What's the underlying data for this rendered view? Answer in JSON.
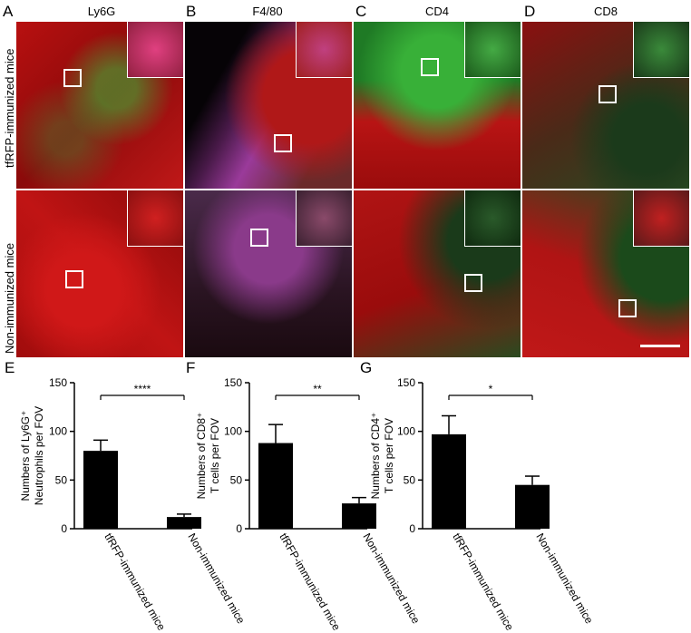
{
  "panels_top": [
    {
      "letter": "A",
      "title": "Ly6G"
    },
    {
      "letter": "B",
      "title": "F4/80"
    },
    {
      "letter": "C",
      "title": "CD4"
    },
    {
      "letter": "D",
      "title": "CD8"
    }
  ],
  "row_labels": [
    "tfRFP-immunized mice",
    "Non-immunized mice"
  ],
  "colors": {
    "red": "#c01010",
    "green": "#2aa832",
    "magenta": "#c040c0",
    "dark": "#1a0a10"
  },
  "chart_data": [
    {
      "letter": "E",
      "type": "bar",
      "categories": [
        "tfRFP-immunized mice",
        "Non-immunized mice"
      ],
      "values": [
        80,
        12
      ],
      "errors": [
        11,
        3
      ],
      "ylabel_line1": "Numbers of Ly6G⁺",
      "ylabel_line2": "Neutrophils per FOV",
      "ylim": [
        0,
        150
      ],
      "yticks": [
        "0",
        "50",
        "100",
        "150"
      ],
      "significance": "****"
    },
    {
      "letter": "F",
      "type": "bar",
      "categories": [
        "tfRFP-immunized mice",
        "Non-immunized mice"
      ],
      "values": [
        88,
        26
      ],
      "errors": [
        19,
        6
      ],
      "ylabel_line1": "Numbers of CD8⁺",
      "ylabel_line2": "T cells per FOV",
      "ylim": [
        0,
        150
      ],
      "yticks": [
        "0",
        "50",
        "100",
        "150"
      ],
      "significance": "**"
    },
    {
      "letter": "G",
      "type": "bar",
      "categories": [
        "tfRFP-immunized mice",
        "Non-immunized mice"
      ],
      "values": [
        97,
        45
      ],
      "errors": [
        19,
        9
      ],
      "ylabel_line1": "Numbers of CD4⁺",
      "ylabel_line2": "T cells per FOV",
      "ylim": [
        0,
        150
      ],
      "yticks": [
        "0",
        "50",
        "100",
        "150"
      ],
      "significance": "*"
    }
  ]
}
